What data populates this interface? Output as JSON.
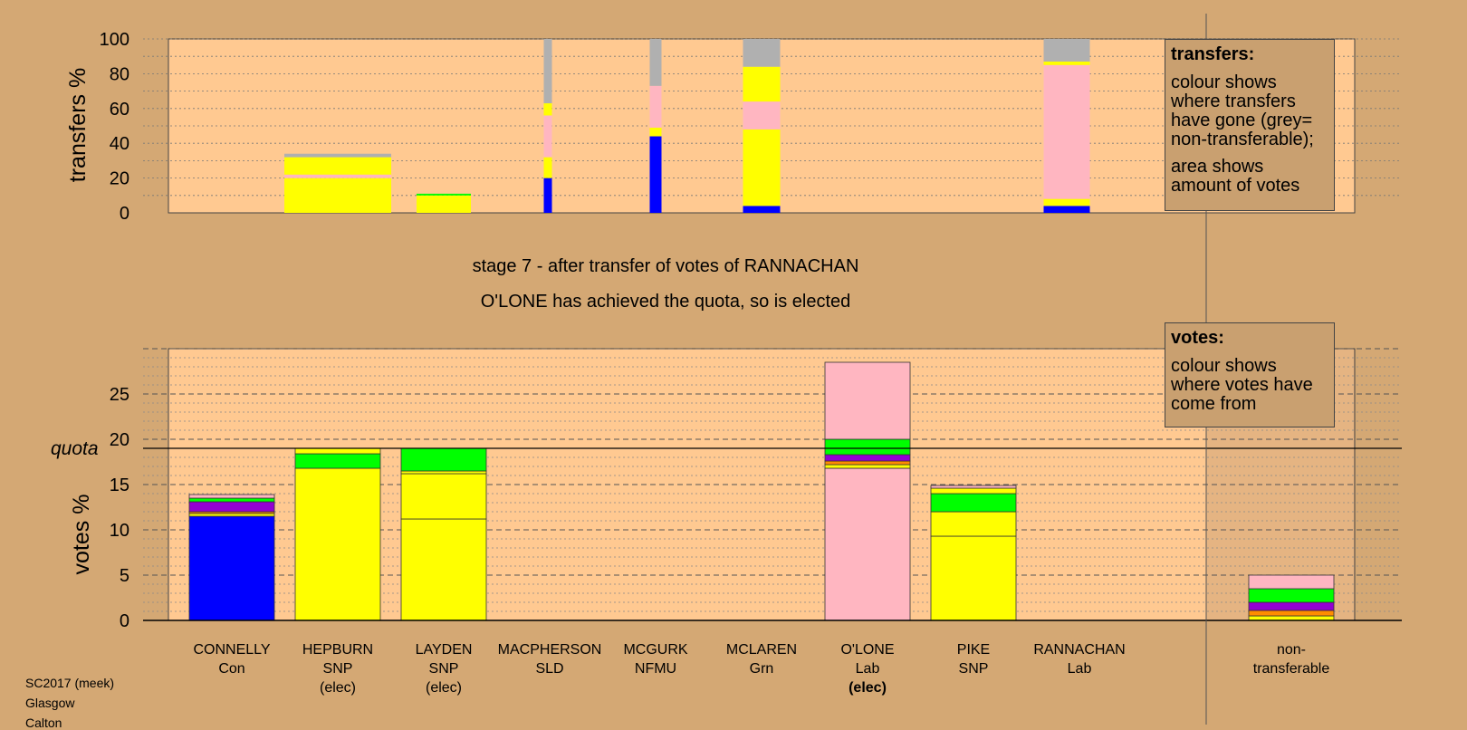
{
  "colors": {
    "background": "#d4a874",
    "plot_bg": "#ffc991",
    "Con": "#0000ff",
    "SNP": "#ffff00",
    "LibDem": "#ff8c00",
    "NFMU": "#9400d3",
    "Grn": "#00ff00",
    "Lab": "#ffb6c1",
    "nontransferable": "#b0b0b0"
  },
  "captions": {
    "stage": "stage 7 - after transfer of votes of RANNACHAN",
    "elected": "O'LONE has achieved the quota, so is elected"
  },
  "legend_transfers": {
    "title": "transfers:",
    "line1": "colour shows where transfers have gone (grey= non-transferable);",
    "line2": "area shows amount of votes"
  },
  "legend_votes": {
    "title": "votes:",
    "line1": "colour shows where votes have come from"
  },
  "footer": {
    "line1": "SC2017 (meek)",
    "line2": "Glasgow",
    "line3": "Calton"
  },
  "chart_data": [
    {
      "type": "bar",
      "ylabel": "transfers %",
      "ylim": [
        0,
        100
      ],
      "yticks": [
        0,
        20,
        40,
        60,
        80,
        100
      ],
      "grid": "dotted",
      "stacked": true,
      "transfers": [
        {
          "candidate": "HEPBURN",
          "segments": [
            {
              "party": "SNP",
              "from": 0,
              "to": 20
            },
            {
              "party": "Lab",
              "from": 20,
              "to": 22
            },
            {
              "party": "SNP",
              "from": 22,
              "to": 32
            },
            {
              "party": "nontransferable",
              "from": 32,
              "to": 34
            }
          ]
        },
        {
          "candidate": "LAYDEN",
          "segments": [
            {
              "party": "SNP",
              "from": 0,
              "to": 10
            },
            {
              "party": "Grn",
              "from": 10,
              "to": 11
            }
          ]
        },
        {
          "candidate": "MACPHERSON",
          "segments": [
            {
              "party": "Con",
              "from": 0,
              "to": 20
            },
            {
              "party": "SNP",
              "from": 20,
              "to": 32
            },
            {
              "party": "Lab",
              "from": 32,
              "to": 56
            },
            {
              "party": "SNP",
              "from": 56,
              "to": 63
            },
            {
              "party": "nontransferable",
              "from": 63,
              "to": 100
            }
          ]
        },
        {
          "candidate": "MCGURK",
          "segments": [
            {
              "party": "Con",
              "from": 0,
              "to": 44
            },
            {
              "party": "SNP",
              "from": 44,
              "to": 49
            },
            {
              "party": "Lab",
              "from": 49,
              "to": 73
            },
            {
              "party": "nontransferable",
              "from": 73,
              "to": 100
            }
          ]
        },
        {
          "candidate": "MCLAREN",
          "segments": [
            {
              "party": "Con",
              "from": 0,
              "to": 4
            },
            {
              "party": "SNP",
              "from": 4,
              "to": 48
            },
            {
              "party": "Lab",
              "from": 48,
              "to": 64
            },
            {
              "party": "SNP",
              "from": 64,
              "to": 84
            },
            {
              "party": "nontransferable",
              "from": 84,
              "to": 100
            }
          ]
        },
        {
          "candidate": "RANNACHAN",
          "segments": [
            {
              "party": "Con",
              "from": 0,
              "to": 4
            },
            {
              "party": "SNP",
              "from": 4,
              "to": 8
            },
            {
              "party": "Lab",
              "from": 8,
              "to": 85
            },
            {
              "party": "SNP",
              "from": 85,
              "to": 87
            },
            {
              "party": "nontransferable",
              "from": 87,
              "to": 100
            }
          ]
        }
      ]
    },
    {
      "type": "bar",
      "ylabel": "votes %",
      "ylim": [
        0,
        30
      ],
      "yticks": [
        0,
        5,
        10,
        15,
        20,
        25
      ],
      "quota": 19.0,
      "quota_label": "quota",
      "grid": "dashed",
      "stacked": true,
      "categories": [
        "CONNELLY",
        "HEPBURN",
        "LAYDEN",
        "MACPHERSON",
        "MCGURK",
        "MCLAREN",
        "O'LONE",
        "PIKE",
        "RANNACHAN",
        "non-transferable"
      ],
      "labels": [
        {
          "name": "CONNELLY",
          "party": "Con",
          "status": ""
        },
        {
          "name": "HEPBURN",
          "party": "SNP",
          "status": "(elec)"
        },
        {
          "name": "LAYDEN",
          "party": "SNP",
          "status": "(elec)"
        },
        {
          "name": "MACPHERSON",
          "party": "SLD",
          "status": ""
        },
        {
          "name": "MCGURK",
          "party": "NFMU",
          "status": ""
        },
        {
          "name": "MCLAREN",
          "party": "Grn",
          "status": ""
        },
        {
          "name": "O'LONE",
          "party": "Lab",
          "status": "(elec)"
        },
        {
          "name": "PIKE",
          "party": "SNP",
          "status": ""
        },
        {
          "name": "RANNACHAN",
          "party": "Lab",
          "status": ""
        },
        {
          "name": "non-",
          "party": "transferable",
          "status": ""
        }
      ],
      "stacks": [
        [
          {
            "party": "Con",
            "from": 0,
            "to": 11.5
          },
          {
            "party": "SNP",
            "from": 11.5,
            "to": 11.8
          },
          {
            "party": "LibDem",
            "from": 11.8,
            "to": 12.0
          },
          {
            "party": "NFMU",
            "from": 12.0,
            "to": 13.1
          },
          {
            "party": "Grn",
            "from": 13.1,
            "to": 13.5
          },
          {
            "party": "Lab",
            "from": 13.5,
            "to": 13.9
          }
        ],
        [
          {
            "party": "SNP",
            "from": 0,
            "to": 16.8
          },
          {
            "party": "Grn",
            "from": 16.8,
            "to": 18.4
          },
          {
            "party": "SNP",
            "from": 18.4,
            "to": 19.0
          }
        ],
        [
          {
            "party": "SNP",
            "from": 0,
            "to": 11.2
          },
          {
            "party": "SNP",
            "from": 11.2,
            "to": 16.2
          },
          {
            "party": "SNP",
            "from": 16.2,
            "to": 16.5
          },
          {
            "party": "Grn",
            "from": 16.5,
            "to": 19.0
          }
        ],
        [],
        [],
        [],
        [
          {
            "party": "Lab",
            "from": 0,
            "to": 16.8
          },
          {
            "party": "SNP",
            "from": 16.8,
            "to": 17.2
          },
          {
            "party": "LibDem",
            "from": 17.2,
            "to": 17.6
          },
          {
            "party": "NFMU",
            "from": 17.6,
            "to": 18.3
          },
          {
            "party": "Grn",
            "from": 18.3,
            "to": 20.0
          },
          {
            "party": "Lab",
            "from": 20.0,
            "to": 28.5
          }
        ],
        [
          {
            "party": "SNP",
            "from": 0,
            "to": 9.3
          },
          {
            "party": "SNP",
            "from": 9.3,
            "to": 12.0
          },
          {
            "party": "Grn",
            "from": 12.0,
            "to": 14.0
          },
          {
            "party": "SNP",
            "from": 14.0,
            "to": 14.6
          },
          {
            "party": "Lab",
            "from": 14.6,
            "to": 14.9
          }
        ],
        [],
        [
          {
            "party": "SNP",
            "from": 0,
            "to": 0.5
          },
          {
            "party": "LibDem",
            "from": 0.5,
            "to": 1.1
          },
          {
            "party": "NFMU",
            "from": 1.1,
            "to": 2.0
          },
          {
            "party": "Grn",
            "from": 2.0,
            "to": 3.5
          },
          {
            "party": "Lab",
            "from": 3.5,
            "to": 5.0
          }
        ]
      ]
    }
  ]
}
